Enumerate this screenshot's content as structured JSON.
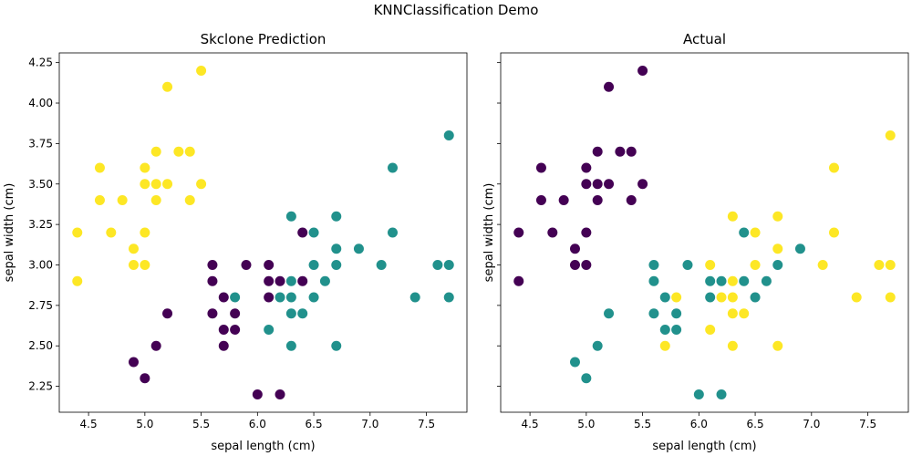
{
  "figure_title": "KNNClassification Demo",
  "class_colors": [
    "#440154",
    "#21918c",
    "#fde725"
  ],
  "chart_data": [
    {
      "type": "scatter",
      "title": "Skclone Prediction",
      "xlabel": "sepal length (cm)",
      "ylabel": "sepal width (cm)",
      "xlim": [
        4.24,
        7.86
      ],
      "ylim": [
        2.09,
        4.31
      ],
      "xticks": [
        "4.5",
        "5.0",
        "5.5",
        "6.0",
        "6.5",
        "7.0",
        "7.5"
      ],
      "yticks": [
        "2.25",
        "2.50",
        "2.75",
        "3.00",
        "3.25",
        "3.50",
        "3.75",
        "4.00",
        "4.25"
      ],
      "grid": false,
      "points": [
        {
          "x": 5.5,
          "y": 4.2,
          "c": 2
        },
        {
          "x": 5.2,
          "y": 4.1,
          "c": 2
        },
        {
          "x": 5.1,
          "y": 3.7,
          "c": 2
        },
        {
          "x": 5.3,
          "y": 3.7,
          "c": 2
        },
        {
          "x": 5.4,
          "y": 3.7,
          "c": 2
        },
        {
          "x": 4.6,
          "y": 3.6,
          "c": 2
        },
        {
          "x": 5.0,
          "y": 3.6,
          "c": 2
        },
        {
          "x": 5.0,
          "y": 3.5,
          "c": 2
        },
        {
          "x": 5.1,
          "y": 3.5,
          "c": 2
        },
        {
          "x": 5.2,
          "y": 3.5,
          "c": 2
        },
        {
          "x": 5.5,
          "y": 3.5,
          "c": 2
        },
        {
          "x": 4.6,
          "y": 3.4,
          "c": 2
        },
        {
          "x": 4.8,
          "y": 3.4,
          "c": 2
        },
        {
          "x": 5.1,
          "y": 3.4,
          "c": 2
        },
        {
          "x": 5.4,
          "y": 3.4,
          "c": 2
        },
        {
          "x": 4.4,
          "y": 3.2,
          "c": 2
        },
        {
          "x": 4.7,
          "y": 3.2,
          "c": 2
        },
        {
          "x": 5.0,
          "y": 3.2,
          "c": 2
        },
        {
          "x": 4.9,
          "y": 3.1,
          "c": 2
        },
        {
          "x": 4.9,
          "y": 3.0,
          "c": 2
        },
        {
          "x": 5.0,
          "y": 3.0,
          "c": 2
        },
        {
          "x": 4.4,
          "y": 2.9,
          "c": 2
        },
        {
          "x": 5.6,
          "y": 3.0,
          "c": 0
        },
        {
          "x": 5.9,
          "y": 3.0,
          "c": 0
        },
        {
          "x": 6.1,
          "y": 3.0,
          "c": 0
        },
        {
          "x": 5.6,
          "y": 2.9,
          "c": 0
        },
        {
          "x": 6.1,
          "y": 2.9,
          "c": 0
        },
        {
          "x": 6.2,
          "y": 2.9,
          "c": 0
        },
        {
          "x": 6.4,
          "y": 2.9,
          "c": 0
        },
        {
          "x": 5.7,
          "y": 2.8,
          "c": 0
        },
        {
          "x": 6.1,
          "y": 2.8,
          "c": 0
        },
        {
          "x": 6.4,
          "y": 3.2,
          "c": 0
        },
        {
          "x": 5.6,
          "y": 2.7,
          "c": 0
        },
        {
          "x": 5.8,
          "y": 2.7,
          "c": 0
        },
        {
          "x": 5.2,
          "y": 2.7,
          "c": 0
        },
        {
          "x": 5.7,
          "y": 2.6,
          "c": 0
        },
        {
          "x": 5.8,
          "y": 2.6,
          "c": 0
        },
        {
          "x": 5.1,
          "y": 2.5,
          "c": 0
        },
        {
          "x": 5.7,
          "y": 2.5,
          "c": 0
        },
        {
          "x": 4.9,
          "y": 2.4,
          "c": 0
        },
        {
          "x": 5.0,
          "y": 2.3,
          "c": 0
        },
        {
          "x": 6.0,
          "y": 2.2,
          "c": 0
        },
        {
          "x": 6.2,
          "y": 2.2,
          "c": 0
        },
        {
          "x": 7.7,
          "y": 3.8,
          "c": 1
        },
        {
          "x": 7.2,
          "y": 3.6,
          "c": 1
        },
        {
          "x": 6.3,
          "y": 3.3,
          "c": 1
        },
        {
          "x": 6.7,
          "y": 3.3,
          "c": 1
        },
        {
          "x": 6.5,
          "y": 3.2,
          "c": 1
        },
        {
          "x": 7.2,
          "y": 3.2,
          "c": 1
        },
        {
          "x": 6.7,
          "y": 3.1,
          "c": 1
        },
        {
          "x": 6.9,
          "y": 3.1,
          "c": 1
        },
        {
          "x": 6.5,
          "y": 3.0,
          "c": 1
        },
        {
          "x": 6.7,
          "y": 3.0,
          "c": 1
        },
        {
          "x": 7.1,
          "y": 3.0,
          "c": 1
        },
        {
          "x": 7.6,
          "y": 3.0,
          "c": 1
        },
        {
          "x": 7.7,
          "y": 3.0,
          "c": 1
        },
        {
          "x": 6.3,
          "y": 2.9,
          "c": 1
        },
        {
          "x": 6.6,
          "y": 2.9,
          "c": 1
        },
        {
          "x": 5.8,
          "y": 2.8,
          "c": 1
        },
        {
          "x": 6.2,
          "y": 2.8,
          "c": 1
        },
        {
          "x": 6.3,
          "y": 2.8,
          "c": 1
        },
        {
          "x": 6.5,
          "y": 2.8,
          "c": 1
        },
        {
          "x": 7.4,
          "y": 2.8,
          "c": 1
        },
        {
          "x": 7.7,
          "y": 2.8,
          "c": 1
        },
        {
          "x": 6.3,
          "y": 2.7,
          "c": 1
        },
        {
          "x": 6.4,
          "y": 2.7,
          "c": 1
        },
        {
          "x": 6.1,
          "y": 2.6,
          "c": 1
        },
        {
          "x": 6.3,
          "y": 2.5,
          "c": 1
        },
        {
          "x": 6.7,
          "y": 2.5,
          "c": 1
        }
      ]
    },
    {
      "type": "scatter",
      "title": "Actual",
      "xlabel": "sepal length (cm)",
      "ylabel": "sepal width (cm)",
      "xlim": [
        4.24,
        7.86
      ],
      "ylim": [
        2.09,
        4.31
      ],
      "xticks": [
        "4.5",
        "5.0",
        "5.5",
        "6.0",
        "6.5",
        "7.0",
        "7.5"
      ],
      "yticks": [],
      "grid": false,
      "points": [
        {
          "x": 5.5,
          "y": 4.2,
          "c": 0
        },
        {
          "x": 5.2,
          "y": 4.1,
          "c": 0
        },
        {
          "x": 5.1,
          "y": 3.7,
          "c": 0
        },
        {
          "x": 5.3,
          "y": 3.7,
          "c": 0
        },
        {
          "x": 5.4,
          "y": 3.7,
          "c": 0
        },
        {
          "x": 4.6,
          "y": 3.6,
          "c": 0
        },
        {
          "x": 5.0,
          "y": 3.6,
          "c": 0
        },
        {
          "x": 5.0,
          "y": 3.5,
          "c": 0
        },
        {
          "x": 5.1,
          "y": 3.5,
          "c": 0
        },
        {
          "x": 5.2,
          "y": 3.5,
          "c": 0
        },
        {
          "x": 5.5,
          "y": 3.5,
          "c": 0
        },
        {
          "x": 4.6,
          "y": 3.4,
          "c": 0
        },
        {
          "x": 4.8,
          "y": 3.4,
          "c": 0
        },
        {
          "x": 5.1,
          "y": 3.4,
          "c": 0
        },
        {
          "x": 5.4,
          "y": 3.4,
          "c": 0
        },
        {
          "x": 4.4,
          "y": 3.2,
          "c": 0
        },
        {
          "x": 4.7,
          "y": 3.2,
          "c": 0
        },
        {
          "x": 5.0,
          "y": 3.2,
          "c": 0
        },
        {
          "x": 4.9,
          "y": 3.1,
          "c": 0
        },
        {
          "x": 4.9,
          "y": 3.0,
          "c": 0
        },
        {
          "x": 5.0,
          "y": 3.0,
          "c": 0
        },
        {
          "x": 4.4,
          "y": 2.9,
          "c": 0
        },
        {
          "x": 6.4,
          "y": 3.2,
          "c": 1
        },
        {
          "x": 5.6,
          "y": 3.0,
          "c": 1
        },
        {
          "x": 5.9,
          "y": 3.0,
          "c": 1
        },
        {
          "x": 5.6,
          "y": 2.9,
          "c": 1
        },
        {
          "x": 6.1,
          "y": 2.9,
          "c": 1
        },
        {
          "x": 6.2,
          "y": 2.9,
          "c": 1
        },
        {
          "x": 6.4,
          "y": 2.9,
          "c": 1
        },
        {
          "x": 6.6,
          "y": 2.9,
          "c": 1
        },
        {
          "x": 5.7,
          "y": 2.8,
          "c": 1
        },
        {
          "x": 6.1,
          "y": 2.8,
          "c": 1
        },
        {
          "x": 6.5,
          "y": 2.8,
          "c": 1
        },
        {
          "x": 5.2,
          "y": 2.7,
          "c": 1
        },
        {
          "x": 5.6,
          "y": 2.7,
          "c": 1
        },
        {
          "x": 5.8,
          "y": 2.7,
          "c": 1
        },
        {
          "x": 5.7,
          "y": 2.6,
          "c": 1
        },
        {
          "x": 5.8,
          "y": 2.6,
          "c": 1
        },
        {
          "x": 5.1,
          "y": 2.5,
          "c": 1
        },
        {
          "x": 4.9,
          "y": 2.4,
          "c": 1
        },
        {
          "x": 5.0,
          "y": 2.3,
          "c": 1
        },
        {
          "x": 6.0,
          "y": 2.2,
          "c": 1
        },
        {
          "x": 6.2,
          "y": 2.2,
          "c": 1
        },
        {
          "x": 6.9,
          "y": 3.1,
          "c": 1
        },
        {
          "x": 6.7,
          "y": 3.0,
          "c": 1
        },
        {
          "x": 7.7,
          "y": 3.8,
          "c": 2
        },
        {
          "x": 7.2,
          "y": 3.6,
          "c": 2
        },
        {
          "x": 6.3,
          "y": 3.3,
          "c": 2
        },
        {
          "x": 6.7,
          "y": 3.3,
          "c": 2
        },
        {
          "x": 6.5,
          "y": 3.2,
          "c": 2
        },
        {
          "x": 7.2,
          "y": 3.2,
          "c": 2
        },
        {
          "x": 6.7,
          "y": 3.1,
          "c": 2
        },
        {
          "x": 6.1,
          "y": 3.0,
          "c": 2
        },
        {
          "x": 6.5,
          "y": 3.0,
          "c": 2
        },
        {
          "x": 7.1,
          "y": 3.0,
          "c": 2
        },
        {
          "x": 7.6,
          "y": 3.0,
          "c": 2
        },
        {
          "x": 7.7,
          "y": 3.0,
          "c": 2
        },
        {
          "x": 6.3,
          "y": 2.9,
          "c": 2
        },
        {
          "x": 5.8,
          "y": 2.8,
          "c": 2
        },
        {
          "x": 6.2,
          "y": 2.8,
          "c": 2
        },
        {
          "x": 6.3,
          "y": 2.8,
          "c": 2
        },
        {
          "x": 7.4,
          "y": 2.8,
          "c": 2
        },
        {
          "x": 7.7,
          "y": 2.8,
          "c": 2
        },
        {
          "x": 6.3,
          "y": 2.7,
          "c": 2
        },
        {
          "x": 6.4,
          "y": 2.7,
          "c": 2
        },
        {
          "x": 6.1,
          "y": 2.6,
          "c": 2
        },
        {
          "x": 5.7,
          "y": 2.5,
          "c": 2
        },
        {
          "x": 6.3,
          "y": 2.5,
          "c": 2
        },
        {
          "x": 6.7,
          "y": 2.5,
          "c": 2
        }
      ]
    }
  ]
}
